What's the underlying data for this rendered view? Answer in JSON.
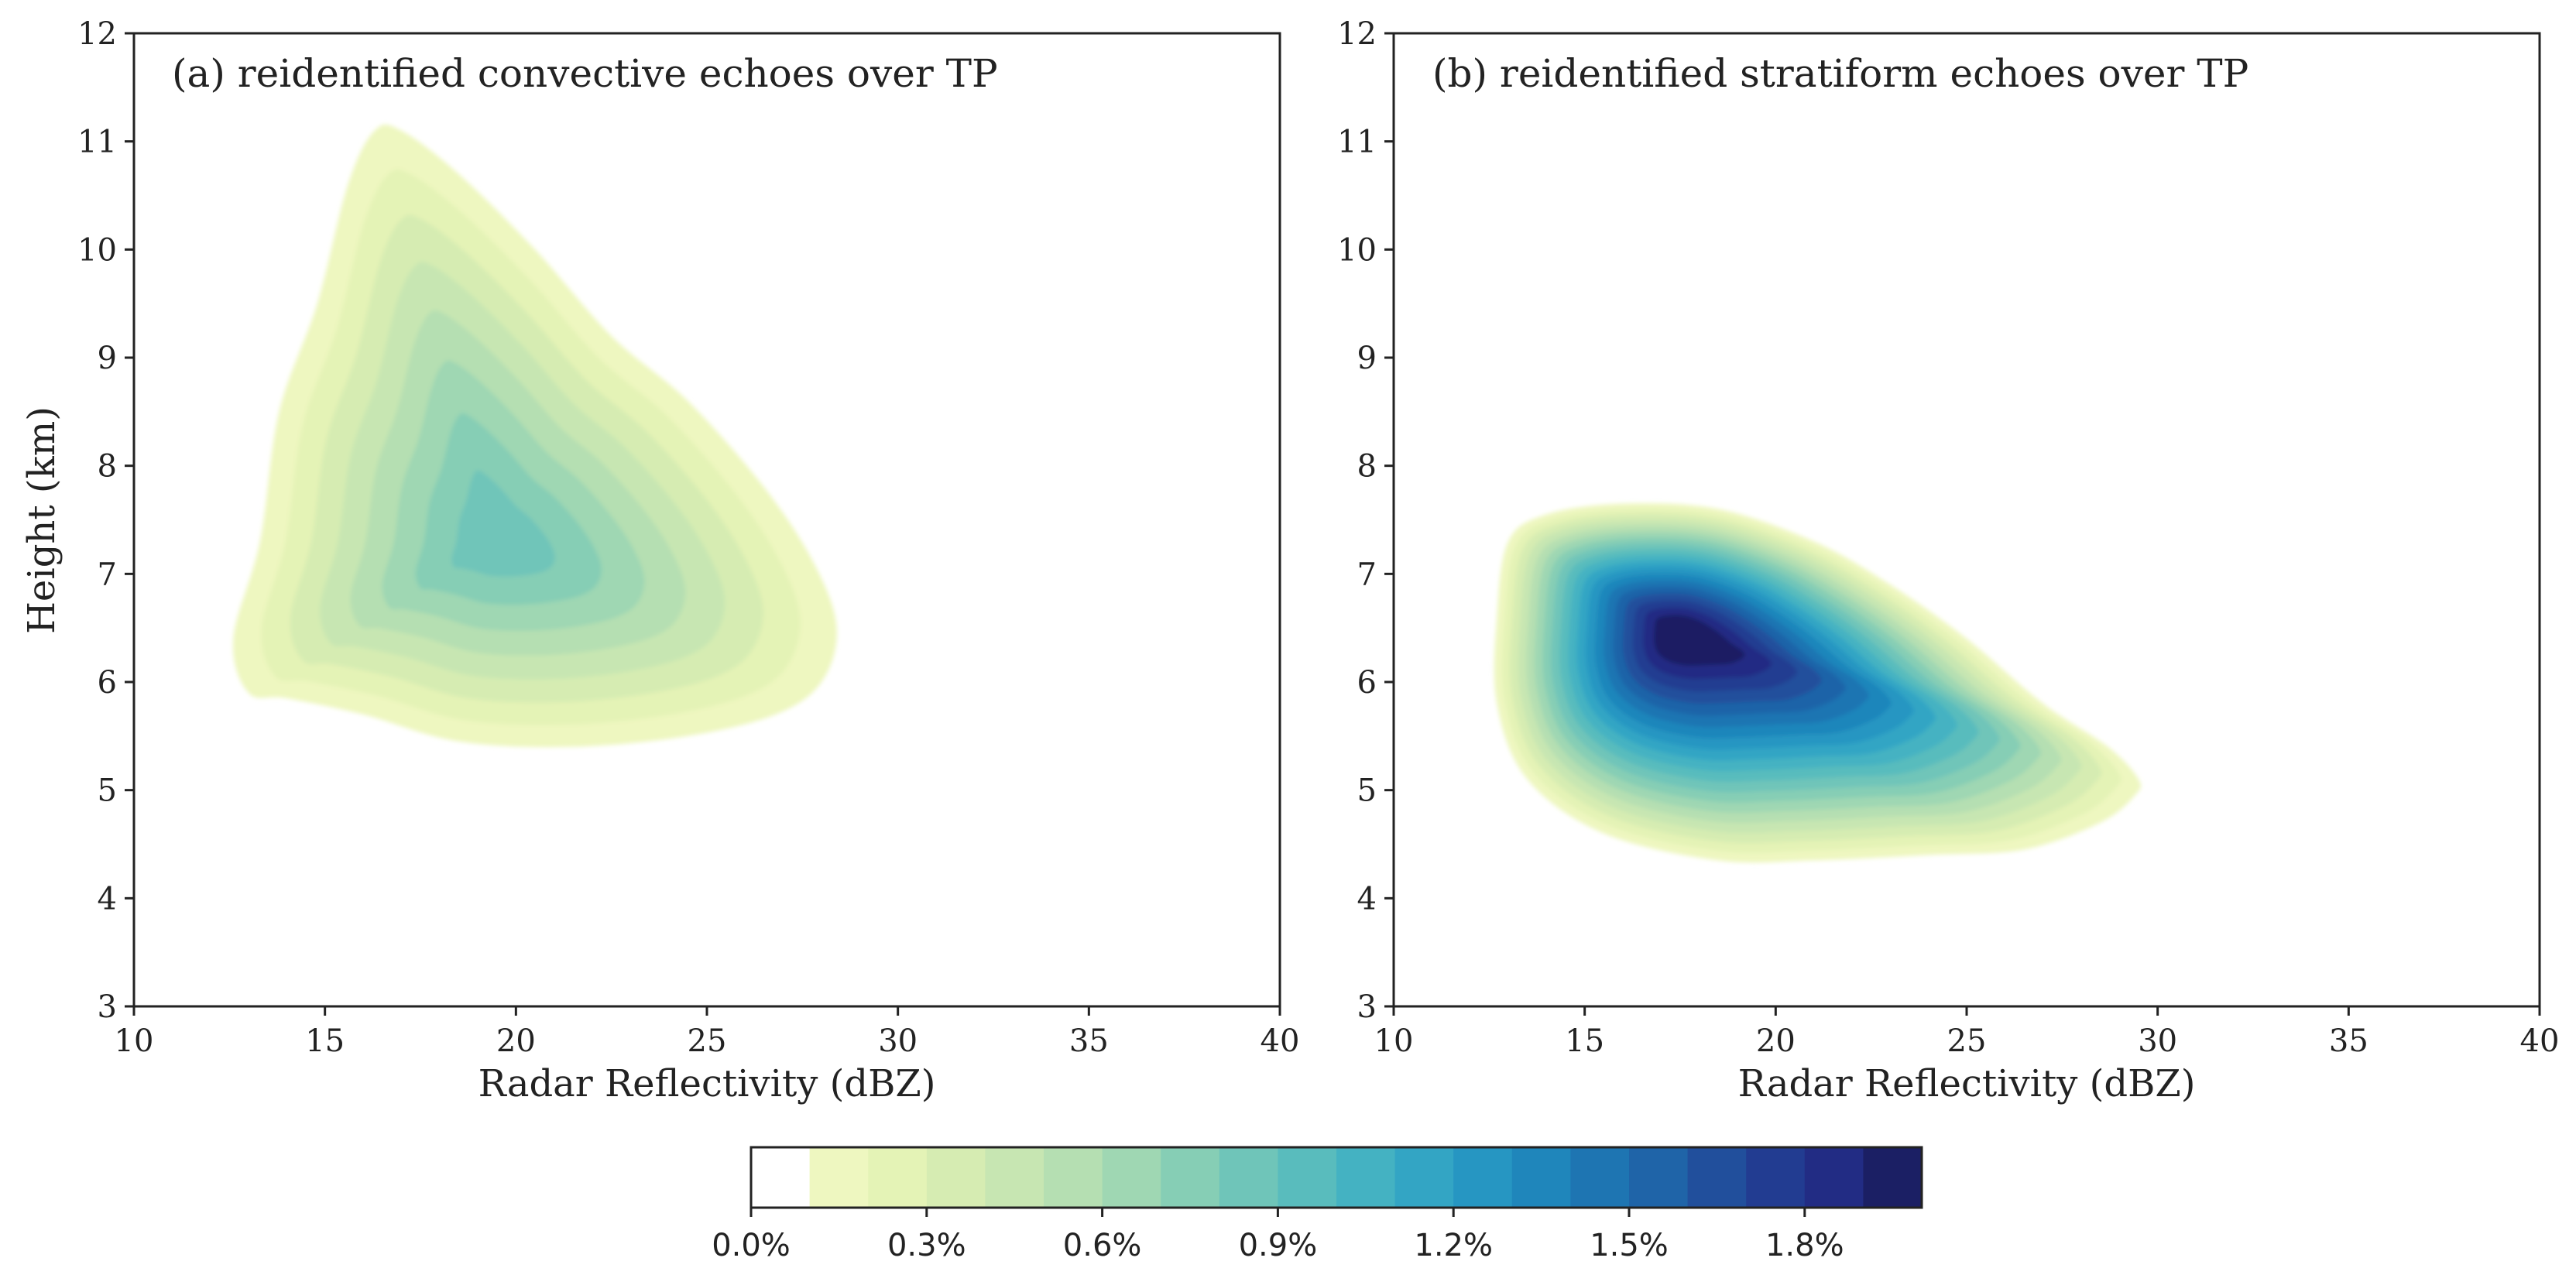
{
  "chart_data": [
    {
      "type": "contourf",
      "title": "(a)  reidentified convective echoes over TP",
      "xlabel": "Radar Reflectivity  (dBZ)",
      "ylabel": "Height   (km)",
      "xlim": [
        10,
        40
      ],
      "ylim": [
        3,
        12
      ],
      "xticks": [
        "10",
        "15",
        "20",
        "25",
        "30",
        "35",
        "40"
      ],
      "yticks": [
        "3",
        "4",
        "5",
        "6",
        "7",
        "8",
        "9",
        "10",
        "11",
        "12"
      ],
      "distribution": {
        "peak_x": 19.5,
        "peak_y": 7.3,
        "peak_value": 0.85,
        "outer_boundary": [
          [
            13.0,
            5.9
          ],
          [
            12.6,
            6.4
          ],
          [
            13.3,
            7.3
          ],
          [
            13.8,
            8.5
          ],
          [
            14.8,
            9.5
          ],
          [
            15.6,
            10.6
          ],
          [
            16.3,
            11.1
          ],
          [
            17.0,
            11.1
          ],
          [
            18.5,
            10.7
          ],
          [
            20.5,
            10.0
          ],
          [
            22.5,
            9.2
          ],
          [
            24.5,
            8.6
          ],
          [
            26.5,
            7.8
          ],
          [
            27.8,
            7.1
          ],
          [
            28.4,
            6.5
          ],
          [
            28.0,
            6.0
          ],
          [
            26.8,
            5.7
          ],
          [
            24.5,
            5.5
          ],
          [
            21.5,
            5.4
          ],
          [
            18.5,
            5.45
          ],
          [
            16.0,
            5.7
          ],
          [
            14.0,
            5.85
          ]
        ]
      }
    },
    {
      "type": "contourf",
      "title": "(b)  reidentified stratiform echoes over TP",
      "xlabel": "Radar Reflectivity  (dBZ)",
      "ylabel": "",
      "xlim": [
        10,
        40
      ],
      "ylim": [
        3,
        12
      ],
      "xticks": [
        "10",
        "15",
        "20",
        "25",
        "30",
        "35",
        "40"
      ],
      "yticks": [
        "3",
        "4",
        "5",
        "6",
        "7",
        "8",
        "9",
        "10",
        "11",
        "12"
      ],
      "distribution": {
        "peak_x": 17.5,
        "peak_y": 6.45,
        "peak_value": 2.0,
        "outer_boundary": [
          [
            13.0,
            7.3
          ],
          [
            14.0,
            7.55
          ],
          [
            16.0,
            7.65
          ],
          [
            18.5,
            7.6
          ],
          [
            21.0,
            7.3
          ],
          [
            23.0,
            6.9
          ],
          [
            25.0,
            6.4
          ],
          [
            27.0,
            5.8
          ],
          [
            28.7,
            5.4
          ],
          [
            29.5,
            5.1
          ],
          [
            29.4,
            4.95
          ],
          [
            28.5,
            4.7
          ],
          [
            26.5,
            4.45
          ],
          [
            24.0,
            4.4
          ],
          [
            21.0,
            4.35
          ],
          [
            18.5,
            4.35
          ],
          [
            15.5,
            4.6
          ],
          [
            13.5,
            5.1
          ],
          [
            12.7,
            5.8
          ],
          [
            12.7,
            6.6
          ]
        ]
      }
    }
  ],
  "colorbar": {
    "ticks": [
      "0.0%",
      "0.3%",
      "0.6%",
      "0.9%",
      "1.2%",
      "1.5%",
      "1.8%"
    ],
    "tick_values": [
      0.0,
      0.3,
      0.6,
      0.9,
      1.2,
      1.5,
      1.8
    ],
    "range": [
      0.0,
      2.0
    ],
    "levels": 20,
    "colors": [
      "#ffffff",
      "#eef7c0",
      "#e4f3b6",
      "#d6ecb2",
      "#c7e6b2",
      "#b5dfb2",
      "#9fd7b3",
      "#86ceb5",
      "#6fc5b9",
      "#59bcbd",
      "#44b2c2",
      "#33a5c4",
      "#2696c2",
      "#1f86bb",
      "#1e75b2",
      "#1f64a8",
      "#214f9c",
      "#223c91",
      "#222c84",
      "#1b1f64"
    ]
  }
}
